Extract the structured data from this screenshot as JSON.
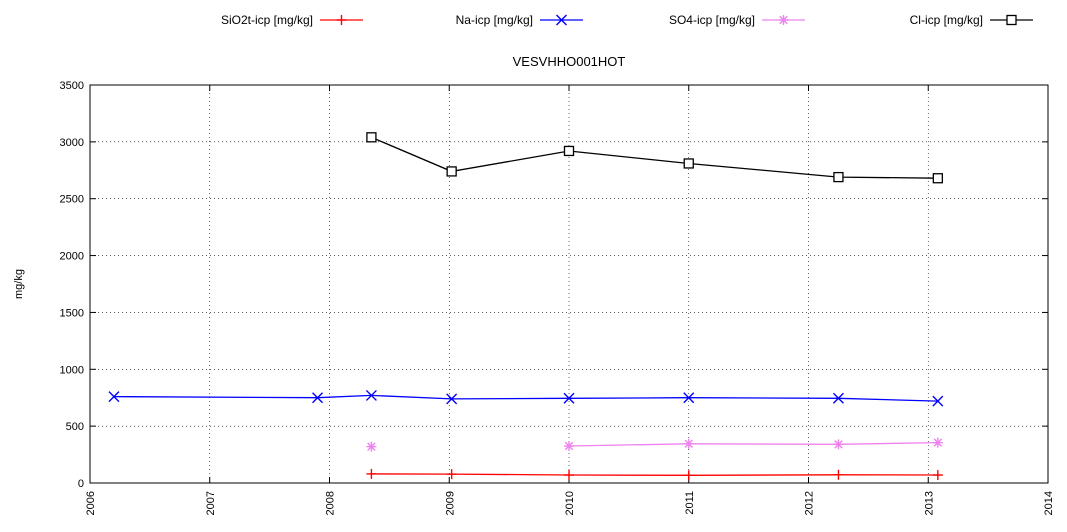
{
  "chart_data": {
    "type": "line",
    "title": "VESVHHO001HOT",
    "xlabel": "",
    "ylabel": "mg/kg",
    "xlim": [
      2006,
      2014
    ],
    "ylim": [
      0,
      3500
    ],
    "x_ticks": [
      "2006",
      "2007",
      "2008",
      "2009",
      "2010",
      "2011",
      "2012",
      "2013",
      "2014"
    ],
    "y_ticks": [
      "0",
      "500",
      "1000",
      "1500",
      "2000",
      "2500",
      "3000",
      "3500"
    ],
    "grid": true,
    "legend": "top",
    "series": [
      {
        "name": "SiO2t-icp [mg/kg]",
        "color": "#ff0000",
        "marker": "plus",
        "x": [
          2008.35,
          2009.02,
          2010.0,
          2011.0,
          2012.25,
          2013.08
        ],
        "y": [
          80,
          78,
          70,
          68,
          72,
          70
        ]
      },
      {
        "name": "Na-icp [mg/kg]",
        "color": "#0000ff",
        "marker": "cross",
        "x": [
          2006.2,
          2007.9,
          2008.35,
          2009.02,
          2010.0,
          2011.0,
          2012.25,
          2013.08
        ],
        "y": [
          760,
          750,
          770,
          740,
          745,
          750,
          745,
          720
        ]
      },
      {
        "name": "SO4-icp [mg/kg]",
        "color": "#ee82ee",
        "marker": "star",
        "gap_after_first": true,
        "x": [
          2008.35,
          2010.0,
          2011.0,
          2012.25,
          2013.08
        ],
        "y": [
          320,
          325,
          345,
          340,
          355
        ]
      },
      {
        "name": "Cl-icp [mg/kg]",
        "color": "#000000",
        "marker": "square",
        "x": [
          2008.35,
          2009.02,
          2010.0,
          2011.0,
          2012.25,
          2013.08
        ],
        "y": [
          3040,
          2740,
          2920,
          2810,
          2690,
          2680
        ]
      }
    ]
  }
}
